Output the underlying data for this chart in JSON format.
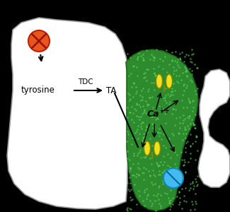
{
  "bg_color": "#000000",
  "cell_color": "#ffffff",
  "green_region_color": "#2d8a2d",
  "right_cell_color": "#ffffff",
  "orange_ball_color": "#e85520",
  "blue_ball_color": "#44bbee",
  "yellow_receptor_color": "#f0e020",
  "tyrosine_label": "tyrosine",
  "tdc_label": "TDC",
  "ta_label": "TA",
  "ca_label": "Ca",
  "ca_superscript": "++",
  "arrow_color": "#000000",
  "cell_edge_color": "#999999",
  "green_edge_color": "#1a6a1a",
  "yellow_edge_color": "#888800"
}
